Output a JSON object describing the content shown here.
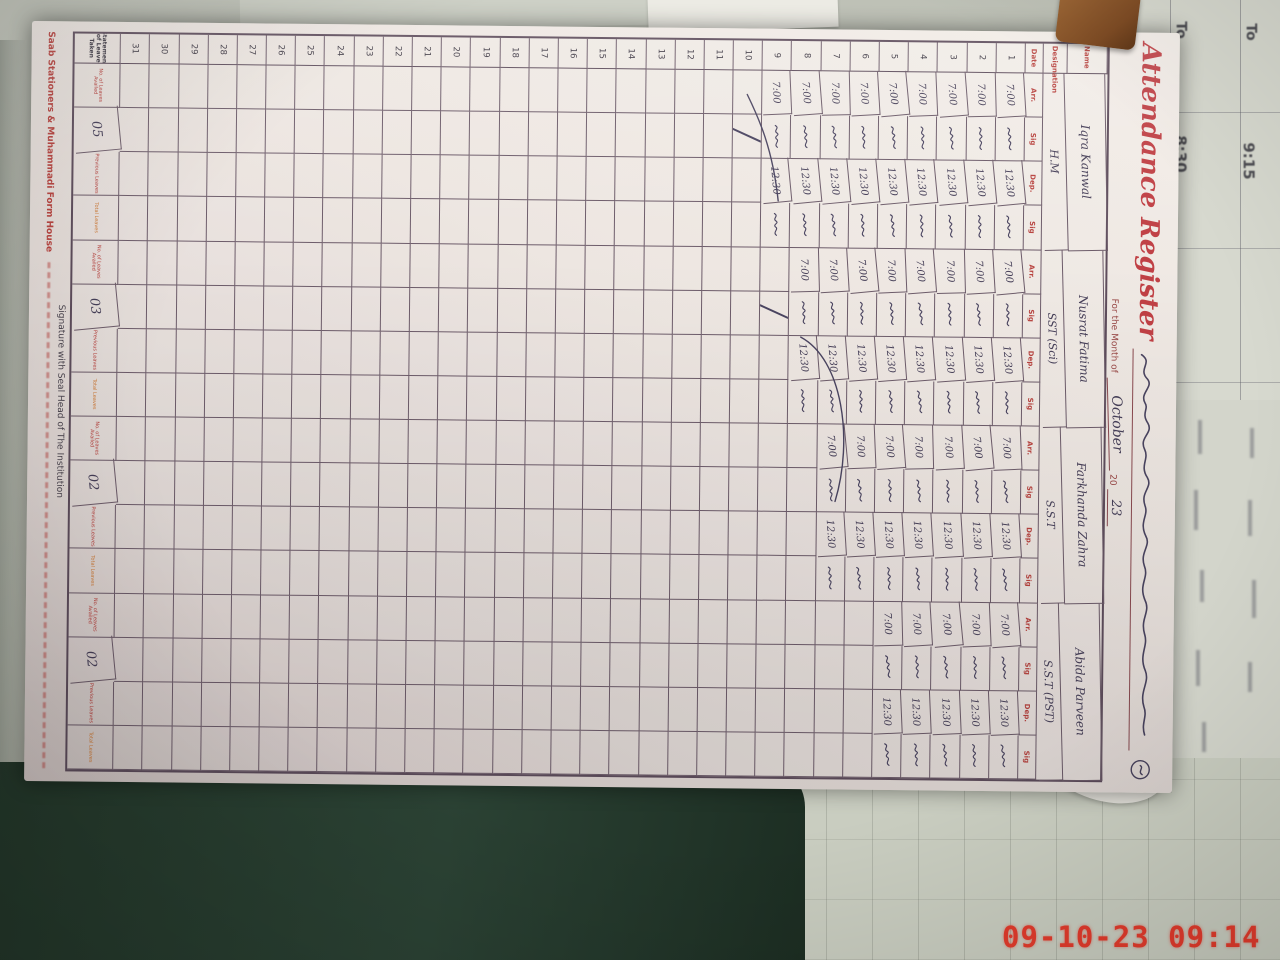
{
  "photo": {
    "timestamp": "09-10-23 09:14"
  },
  "background": {
    "timetable": {
      "cells": [
        {
          "label": "To"
        },
        {
          "label": "To"
        },
        {
          "label": "8:30"
        },
        {
          "label": "9:15"
        }
      ]
    }
  },
  "register": {
    "title": "Attendance Register",
    "month_line": {
      "prefix": "For the Month of",
      "month": "October",
      "year_prefix": "20",
      "year": "23"
    },
    "name_label": "Name",
    "designation_label": "Designation",
    "staff": [
      {
        "name": "Iqra Kanwal",
        "designation": "H.M"
      },
      {
        "name": "Nusrat Fatima",
        "designation": "SST (Sci)"
      },
      {
        "name": "Farkhanda Zahra",
        "designation": "S.S.T"
      },
      {
        "name": "Abida Parveen",
        "designation": "S.S.T (PST)"
      }
    ],
    "columns": {
      "date": "Date",
      "subcols": [
        "Arr.",
        "Sig",
        "Dep.",
        "Sig"
      ]
    },
    "days": [
      1,
      2,
      3,
      4,
      5,
      6,
      7,
      8,
      9,
      10,
      11,
      12,
      13,
      14,
      15,
      16,
      17,
      18,
      19,
      20,
      21,
      22,
      23,
      24,
      25,
      26,
      27,
      28,
      29,
      30,
      31
    ],
    "attendance": {
      "arrival": "7:00",
      "departure": "12:30",
      "filled_rows_per_staff": [
        9,
        8,
        7,
        5
      ]
    },
    "leave_section": {
      "header": "Statement of Leave Taken",
      "labels": [
        "No. of Leaves Availed",
        "Previous Leaves",
        "Total Leaves"
      ],
      "values": [
        "05",
        "03",
        "02",
        "02"
      ]
    },
    "signature_line": "Signature with Seal Head of The Institution",
    "publisher": "Saab Stationers & Muhammadi Form House"
  }
}
